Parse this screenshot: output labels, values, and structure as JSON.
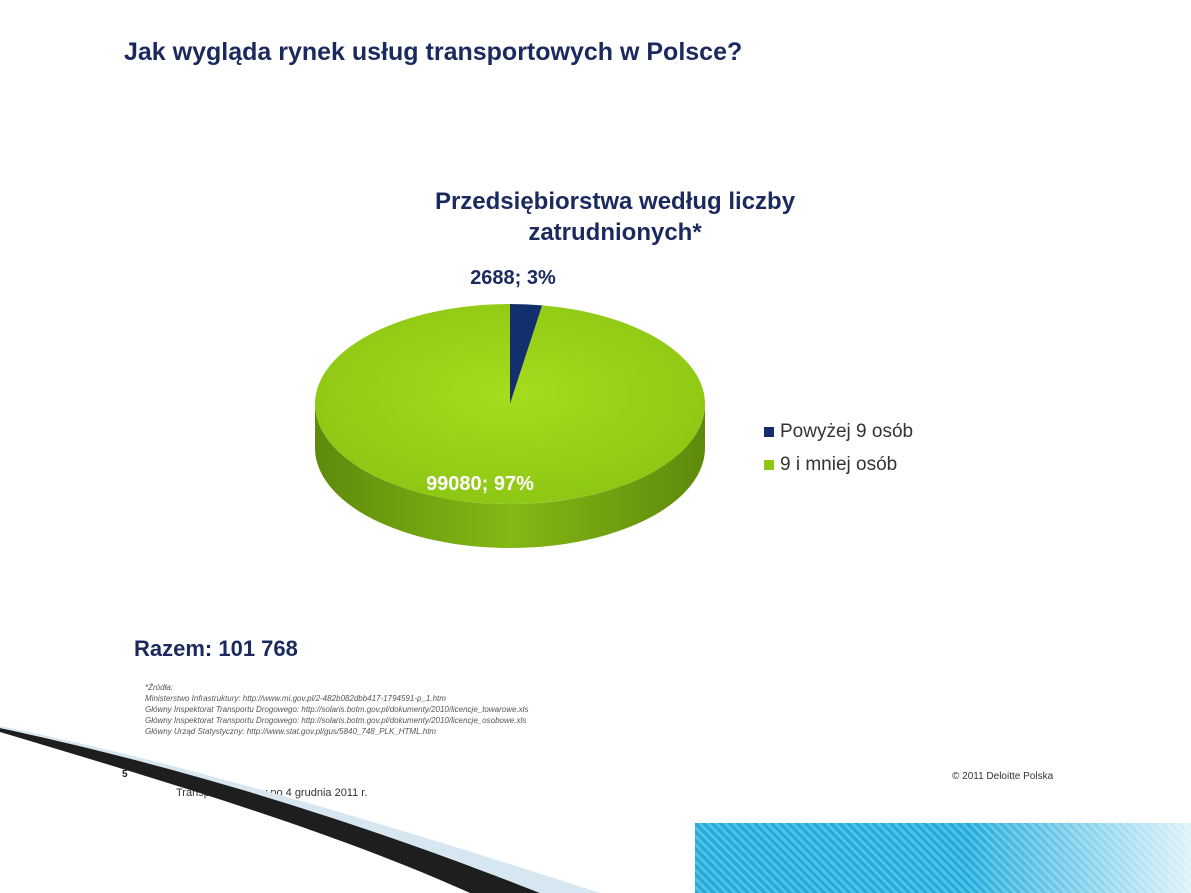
{
  "slide": {
    "title": "Jak wygląda rynek usług transportowych w Polsce?",
    "total": "Razem: 101 768",
    "sources": [
      "*Źródła:",
      "Ministerstwo Infrastruktury: http://www.mi.gov.pl/2-482b082dbb417-1794591-p_1.htm",
      "Główny Inspektorat Transportu Drogowego: http://solaris.botm.gov.pl/dokumenty/2010/licencje_towarowe.xls",
      "Główny Inspektorat Transportu Drogowego: http://solaris.botm.gov.pl/dokumenty/2010/licencje_osobowe.xls",
      "Główny Urząd Statystyczny: http://www.stat.gov.pl/gus/5840_748_PLK_HTML.htm"
    ],
    "page_number": "5",
    "footer": "Transport drogowy po 4 grudnia 2011 r.",
    "copyright": "© 2011 Deloitte Polska"
  },
  "chart_data": {
    "type": "pie",
    "title_lines": [
      "Przedsiębiorstwa według liczby",
      "zatrudnionych*"
    ],
    "slices": [
      {
        "name": "Powyżej 9 osób",
        "value": 2688,
        "percent": 3,
        "label": "2688; 3%",
        "color": "#13306e"
      },
      {
        "name": "9 i mniej osób",
        "value": 99080,
        "percent": 97,
        "label": "99080; 97%",
        "color": "#8fc812"
      }
    ],
    "legend_position": "right",
    "style": "3d"
  }
}
